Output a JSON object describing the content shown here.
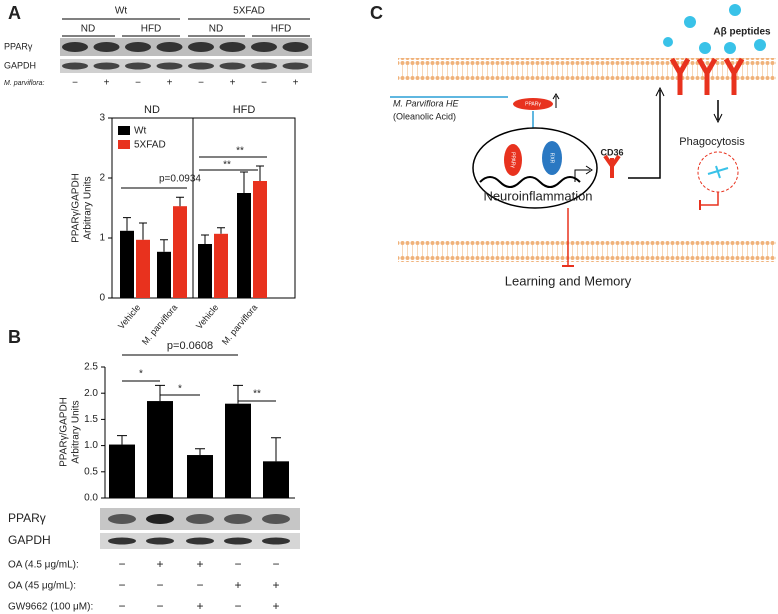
{
  "panels": [
    "A",
    "B",
    "C"
  ],
  "blot_a": {
    "groups": [
      "Wt",
      "5XFAD"
    ],
    "diets": [
      "ND",
      "HFD",
      "ND",
      "HFD"
    ],
    "rows": [
      "PPARγ",
      "GAPDH"
    ],
    "treatment": {
      "label": "M. parviflora:",
      "signs": [
        "−",
        "+",
        "−",
        "+",
        "−",
        "+",
        "−",
        "+"
      ]
    }
  },
  "chart_data": [
    {
      "type": "bar",
      "ylabel": [
        "PPARγ/GAPDH",
        "Arbitrary Units"
      ],
      "group_titles": [
        "ND",
        "HFD"
      ],
      "categories": [
        "Vehicle",
        "M. parviflora",
        "Vehicle",
        "M. parviflora"
      ],
      "series": [
        {
          "name": "Wt",
          "color": "#000000",
          "values": [
            1.12,
            0.77,
            0.9,
            1.75
          ],
          "errors": [
            0.22,
            0.2,
            0.15,
            0.35
          ]
        },
        {
          "name": "5XFAD",
          "color": "#e8321e",
          "values": [
            0.97,
            1.53,
            1.07,
            1.95
          ],
          "errors": [
            0.28,
            0.15,
            0.1,
            0.25
          ]
        }
      ],
      "ylim": [
        0,
        3
      ],
      "yticks": [
        0,
        1,
        2,
        3
      ],
      "legend": "upper left",
      "annotations": [
        {
          "text": "p=0.0934"
        },
        {
          "text": "**"
        },
        {
          "text": "**"
        }
      ]
    },
    {
      "type": "bar",
      "ylabel": [
        "PPARγ/GAPDH",
        "Arbitrary Units"
      ],
      "categories": [
        null,
        null,
        null,
        null,
        null
      ],
      "color": "#000000",
      "values": [
        1.02,
        1.85,
        0.82,
        1.8,
        0.7
      ],
      "errors": [
        0.17,
        0.3,
        0.12,
        0.35,
        0.45
      ],
      "ylim": [
        0,
        2.5
      ],
      "yticks": [
        {
          "value": 0,
          "label": "0.0"
        },
        0.5,
        {
          "value": 1,
          "label": "1.0"
        },
        1.5,
        {
          "value": 2,
          "label": "2.0"
        },
        2.5
      ],
      "annotations": [
        {
          "text": "p=0.0608"
        },
        {
          "text": "*"
        },
        {
          "text": "*"
        },
        {
          "text": "**"
        }
      ]
    }
  ],
  "blot_b": {
    "rows": [
      "PPARγ",
      "GAPDH"
    ],
    "treatments": [
      {
        "label": "OA (4.5 μg/mL):",
        "signs": [
          "−",
          "+",
          "+",
          "−",
          "−"
        ]
      },
      {
        "label": "OA (45 μg/mL):",
        "signs": [
          "−",
          "−",
          "−",
          "+",
          "+"
        ]
      },
      {
        "label": "GW9662 (100 μM):",
        "signs": [
          "−",
          "−",
          "+",
          "−",
          "+"
        ]
      }
    ]
  },
  "diagram": {
    "peptides": "Aβ peptides",
    "agent": "M. Parviflora HE",
    "agent_sub": "(Oleanolic Acid)",
    "pill": "PPARγ",
    "nuc_left": "PPARγ",
    "nuc_right": "RXR",
    "receptor": "CD36",
    "phago": "Phagocytosis",
    "inflam": "Neuroinflammation",
    "outcome": "Learning and Memory"
  }
}
